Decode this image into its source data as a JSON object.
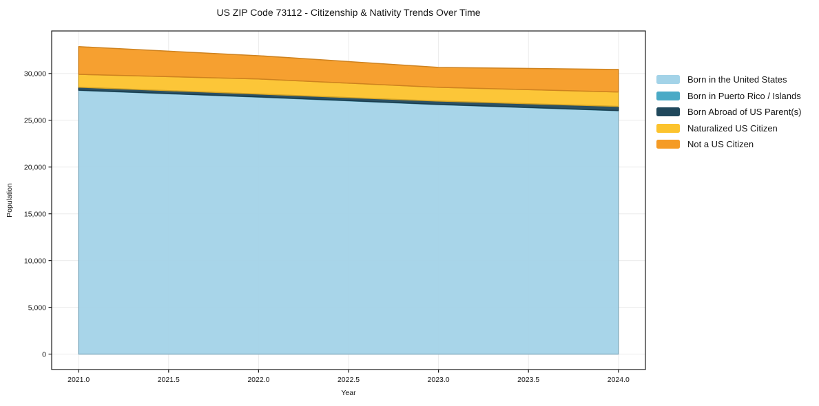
{
  "chart_data": {
    "type": "area",
    "stacked": true,
    "title": "US ZIP Code 73112 - Citizenship & Nativity Trends Over Time",
    "xlabel": "Year",
    "ylabel": "Population",
    "x": [
      2021,
      2022,
      2023,
      2024
    ],
    "series": [
      {
        "name": "Born in the United States",
        "color": "#a3d3e8",
        "values": [
          28200,
          27480,
          26680,
          26020
        ]
      },
      {
        "name": "Born in Puerto Rico / Islands",
        "color": "#4aaac6",
        "values": [
          25,
          25,
          25,
          25
        ]
      },
      {
        "name": "Born Abroad of US Parent(s)",
        "color": "#20485c",
        "values": [
          310,
          300,
          350,
          440
        ]
      },
      {
        "name": "Naturalized US Citizen",
        "color": "#fcc32d",
        "values": [
          1380,
          1610,
          1470,
          1540
        ]
      },
      {
        "name": "Not a US Citizen",
        "color": "#f59b25",
        "values": [
          2960,
          2490,
          2130,
          2410
        ]
      }
    ],
    "totals": [
      32875,
      31905,
      30655,
      30435
    ],
    "x_ticks": {
      "positions": [
        2021.0,
        2021.5,
        2022.0,
        2022.5,
        2023.0,
        2023.5,
        2024.0
      ],
      "labels": [
        "2021.0",
        "2021.5",
        "2022.0",
        "2022.5",
        "2023.0",
        "2023.5",
        "2024.0"
      ]
    },
    "y_ticks": {
      "positions": [
        0,
        5000,
        10000,
        15000,
        20000,
        25000,
        30000
      ],
      "labels": [
        "0",
        "5,000",
        "10,000",
        "15,000",
        "20,000",
        "25,000",
        "30,000"
      ]
    },
    "xlim": [
      2020.85,
      2024.15
    ],
    "ylim": [
      -1650,
      34550
    ],
    "grid": true,
    "grid_color": "#ebebeb",
    "frame_color": "#1a1a1a",
    "legend_position": "right"
  }
}
